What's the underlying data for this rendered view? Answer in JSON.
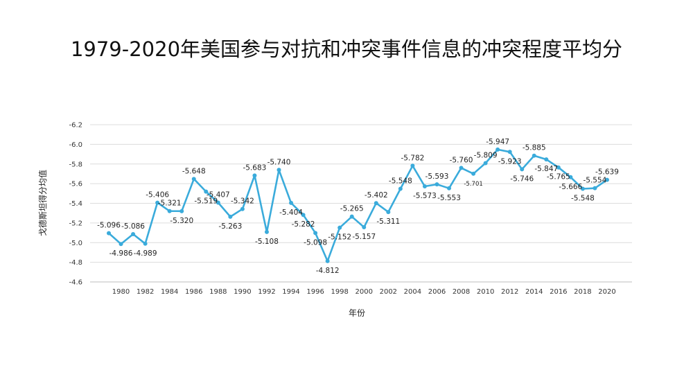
{
  "chart_data": {
    "type": "line",
    "title": "1979-2020年美国参与对抗和冲突事件信息的冲突程度平均分",
    "xlabel": "年份",
    "ylabel": "戈德斯坦得分均值",
    "x": [
      1979,
      1980,
      1981,
      1982,
      1983,
      1984,
      1985,
      1986,
      1987,
      1988,
      1989,
      1990,
      1991,
      1992,
      1993,
      1994,
      1995,
      1996,
      1997,
      1998,
      1999,
      2000,
      2001,
      2002,
      2003,
      2004,
      2005,
      2006,
      2007,
      2008,
      2009,
      2010,
      2011,
      2012,
      2013,
      2014,
      2015,
      2016,
      2017,
      2018,
      2019,
      2020
    ],
    "x_tick_labels": [
      "1980",
      "1982",
      "1984",
      "1986",
      "1988",
      "1990",
      "1992",
      "1994",
      "1996",
      "1998",
      "2000",
      "2002",
      "2004",
      "2006",
      "2008",
      "2010",
      "2012",
      "2014",
      "2016",
      "2018",
      "2020"
    ],
    "y_tick_labels": [
      "-4.6",
      "-4.8",
      "-5.0",
      "-5.2",
      "-5.4",
      "-5.6",
      "-5.8",
      "-6.0",
      "-6.2"
    ],
    "ylim": [
      -4.6,
      -6.2
    ],
    "y_inverted": true,
    "grid": true,
    "legend": "none",
    "series": [
      {
        "color": "#3AABDB",
        "values": [
          -5.096,
          -4.986,
          -5.086,
          -4.989,
          -5.406,
          -5.321,
          -5.32,
          -5.648,
          -5.519,
          -5.407,
          -5.263,
          -5.342,
          -5.683,
          -5.108,
          -5.74,
          -5.404,
          -5.282,
          -5.098,
          -4.812,
          -5.152,
          -5.265,
          -5.157,
          -5.402,
          -5.311,
          -5.548,
          -5.782,
          -5.573,
          -5.593,
          -5.553,
          -5.76,
          -5.701,
          -5.809,
          -5.947,
          -5.923,
          -5.746,
          -5.885,
          -5.847,
          -5.765,
          -5.666,
          -5.548,
          -5.554,
          -5.639
        ],
        "data_labels": [
          "-5.096",
          "-4.986",
          "-5.086",
          "-4.989",
          "-5.406",
          "-5.321",
          "-5.320",
          "-5.648",
          "-5.519",
          "-5.407",
          "-5.263",
          "-5.342",
          "-5.683",
          "-5.108",
          "-5.740",
          "-5.404",
          "-5.282",
          "-5.098",
          "-4.812",
          "-5.152",
          "-5.265",
          "-5.157",
          "-5.402",
          "-5.311",
          "-5.548",
          "-5.782",
          "-5.573",
          "-5.593",
          "-5.553",
          "-5.760",
          "-5.701",
          "-5.809",
          "-5.947",
          "-5.923",
          "-5.746",
          "-5.885",
          "-5.847",
          "-5.765",
          "-5.666",
          "-5.548",
          "-5.554",
          "-5.639"
        ]
      }
    ]
  }
}
